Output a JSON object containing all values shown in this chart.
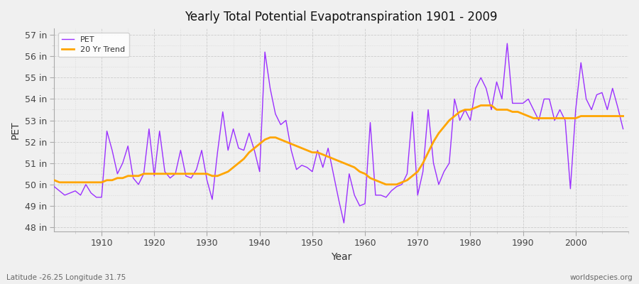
{
  "title": "Yearly Total Potential Evapotranspiration 1901 - 2009",
  "xlabel": "Year",
  "ylabel": "PET",
  "lat_lon_label": "Latitude -26.25 Longitude 31.75",
  "watermark": "worldspecies.org",
  "pet_color": "#9B30FF",
  "trend_color": "#FFA500",
  "bg_color": "#F0F0F0",
  "plot_bg_color": "#F0F0F0",
  "ylim": [
    47.8,
    57.3
  ],
  "yticks": [
    48,
    49,
    50,
    51,
    52,
    53,
    54,
    55,
    56,
    57
  ],
  "ytick_labels": [
    "48 in",
    "49 in",
    "50 in",
    "51 in",
    "52 in",
    "53 in",
    "54 in",
    "55 in",
    "56 in",
    "57 in"
  ],
  "xlim": [
    1901,
    2010
  ],
  "xticks": [
    1910,
    1920,
    1930,
    1940,
    1950,
    1960,
    1970,
    1980,
    1990,
    2000
  ],
  "years": [
    1901,
    1902,
    1903,
    1904,
    1905,
    1906,
    1907,
    1908,
    1909,
    1910,
    1911,
    1912,
    1913,
    1914,
    1915,
    1916,
    1917,
    1918,
    1919,
    1920,
    1921,
    1922,
    1923,
    1924,
    1925,
    1926,
    1927,
    1928,
    1929,
    1930,
    1931,
    1932,
    1933,
    1934,
    1935,
    1936,
    1937,
    1938,
    1939,
    1940,
    1941,
    1942,
    1943,
    1944,
    1945,
    1946,
    1947,
    1948,
    1949,
    1950,
    1951,
    1952,
    1953,
    1954,
    1955,
    1956,
    1957,
    1958,
    1959,
    1960,
    1961,
    1962,
    1963,
    1964,
    1965,
    1966,
    1967,
    1968,
    1969,
    1970,
    1971,
    1972,
    1973,
    1974,
    1975,
    1976,
    1977,
    1978,
    1979,
    1980,
    1981,
    1982,
    1983,
    1984,
    1985,
    1986,
    1987,
    1988,
    1989,
    1990,
    1991,
    1992,
    1993,
    1994,
    1995,
    1996,
    1997,
    1998,
    1999,
    2000,
    2001,
    2002,
    2003,
    2004,
    2005,
    2006,
    2007,
    2008,
    2009
  ],
  "pet_values": [
    49.9,
    49.7,
    49.5,
    49.6,
    49.7,
    49.5,
    50.0,
    49.6,
    49.4,
    49.4,
    52.5,
    51.6,
    50.5,
    51.0,
    51.8,
    50.3,
    50.0,
    50.5,
    52.6,
    50.4,
    52.5,
    50.6,
    50.3,
    50.5,
    51.6,
    50.4,
    50.3,
    50.7,
    51.6,
    50.2,
    49.3,
    51.5,
    53.4,
    51.6,
    52.6,
    51.7,
    51.6,
    52.4,
    51.6,
    50.6,
    56.2,
    54.5,
    53.3,
    52.8,
    53.0,
    51.6,
    50.7,
    50.9,
    50.8,
    50.6,
    51.6,
    50.8,
    51.7,
    50.5,
    49.3,
    48.2,
    50.5,
    49.5,
    49.0,
    49.1,
    52.9,
    49.5,
    49.5,
    49.4,
    49.7,
    49.9,
    50.0,
    50.5,
    53.4,
    49.5,
    50.6,
    53.5,
    51.0,
    50.0,
    50.6,
    51.0,
    54.0,
    53.0,
    53.5,
    53.0,
    54.5,
    55.0,
    54.5,
    53.5,
    54.8,
    54.0,
    56.6,
    53.8,
    53.8,
    53.8,
    54.0,
    53.5,
    53.0,
    54.0,
    54.0,
    53.0,
    53.5,
    53.0,
    49.8,
    53.5,
    55.7,
    54.0,
    53.5,
    54.2,
    54.3,
    53.5,
    54.5,
    53.6,
    52.6
  ],
  "trend_values": [
    50.2,
    50.1,
    50.1,
    50.1,
    50.1,
    50.1,
    50.1,
    50.1,
    50.1,
    50.1,
    50.2,
    50.2,
    50.3,
    50.3,
    50.4,
    50.4,
    50.4,
    50.5,
    50.5,
    50.5,
    50.5,
    50.5,
    50.5,
    50.5,
    50.5,
    50.5,
    50.5,
    50.5,
    50.5,
    50.5,
    50.4,
    50.4,
    50.5,
    50.6,
    50.8,
    51.0,
    51.2,
    51.5,
    51.7,
    51.9,
    52.1,
    52.2,
    52.2,
    52.1,
    52.0,
    51.9,
    51.8,
    51.7,
    51.6,
    51.5,
    51.5,
    51.4,
    51.3,
    51.2,
    51.1,
    51.0,
    50.9,
    50.8,
    50.6,
    50.5,
    50.3,
    50.2,
    50.1,
    50.0,
    50.0,
    50.0,
    50.1,
    50.2,
    50.4,
    50.6,
    51.0,
    51.5,
    52.0,
    52.4,
    52.7,
    53.0,
    53.2,
    53.4,
    53.5,
    53.5,
    53.6,
    53.7,
    53.7,
    53.7,
    53.5,
    53.5,
    53.5,
    53.4,
    53.4,
    53.3,
    53.2,
    53.1,
    53.1,
    53.1,
    53.1,
    53.1,
    53.1,
    53.1,
    53.1,
    53.1,
    53.2,
    53.2,
    53.2,
    53.2,
    53.2,
    53.2,
    53.2,
    53.2,
    53.2
  ]
}
